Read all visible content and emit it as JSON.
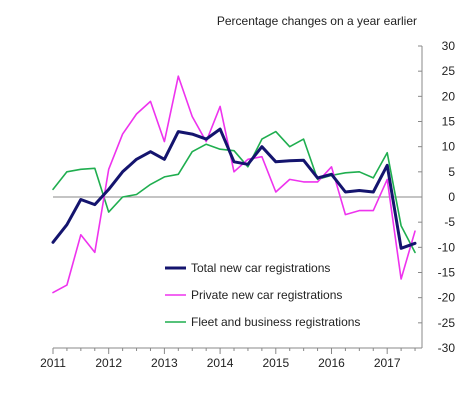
{
  "chart_data": {
    "type": "line",
    "title": "",
    "ylabel": "Percentage changes on a year earlier",
    "xlabel": "",
    "ylim": [
      -30,
      30
    ],
    "y_ticks": [
      30,
      25,
      20,
      15,
      10,
      5,
      0,
      -5,
      -10,
      -15,
      -20,
      -25,
      -30
    ],
    "x_range": [
      2011.0,
      2017.625
    ],
    "x_ticks": [
      2011,
      2012,
      2013,
      2014,
      2015,
      2016,
      2017
    ],
    "x_tick_labels": [
      "2011",
      "2012",
      "2013",
      "2014",
      "2015",
      "2016",
      "2017"
    ],
    "y_axis_side": "right",
    "grid": false,
    "legend_position": "lower-center",
    "x": [
      2011.0,
      2011.25,
      2011.5,
      2011.75,
      2012.0,
      2012.25,
      2012.5,
      2012.75,
      2013.0,
      2013.25,
      2013.5,
      2013.75,
      2014.0,
      2014.25,
      2014.5,
      2014.75,
      2015.0,
      2015.25,
      2015.5,
      2015.75,
      2016.0,
      2016.25,
      2016.5,
      2016.75,
      2017.0,
      2017.25,
      2017.5
    ],
    "series": [
      {
        "name": "Total new car registrations",
        "color": "#14146e",
        "stroke_width": 3,
        "values": [
          -9,
          -5.5,
          -0.5,
          -1.5,
          1.5,
          5,
          7.5,
          9,
          7.5,
          13,
          12.5,
          11.5,
          13.5,
          7,
          6.5,
          10,
          7,
          7.2,
          7.3,
          3.8,
          4.5,
          1,
          1.3,
          1,
          6.3,
          -10.2,
          -9.2
        ]
      },
      {
        "name": "Private new car registrations",
        "color": "#ee33ee",
        "stroke_width": 1.6,
        "values": [
          -19,
          -17.5,
          -7.5,
          -11,
          5.5,
          12.5,
          16.5,
          19,
          11,
          24,
          16,
          11,
          18,
          5,
          7.5,
          8,
          1,
          3.5,
          3,
          3,
          6,
          -3.5,
          -2.7,
          -2.7,
          3.5,
          -16.3,
          -6.8
        ]
      },
      {
        "name": "Fleet and business registrations",
        "color": "#1fae4f",
        "stroke_width": 1.6,
        "values": [
          1.5,
          5,
          5.5,
          5.7,
          -3,
          0,
          0.5,
          2.5,
          4,
          4.5,
          9,
          10.5,
          9.5,
          9.2,
          6,
          11.5,
          13,
          10,
          11.5,
          3.5,
          4.3,
          4.8,
          5,
          3.8,
          8.8,
          -5.7,
          -11
        ]
      }
    ]
  }
}
